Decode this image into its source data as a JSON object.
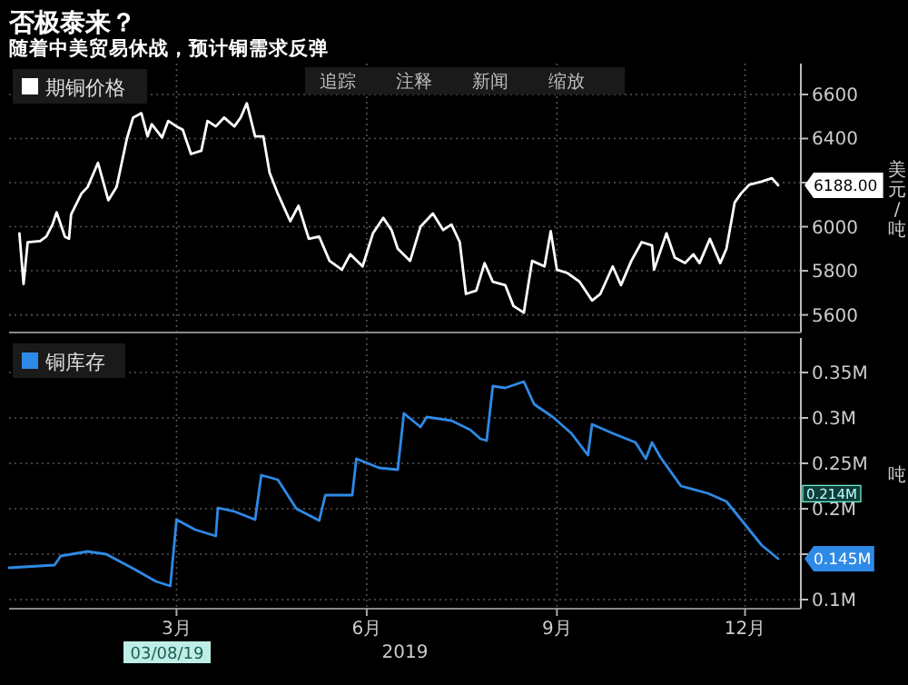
{
  "chart_data": [
    {
      "type": "line",
      "title": "否极泰来？",
      "subtitle": "随着中美贸易休战，预计铜需求反弹",
      "ylabel": "美元/吨",
      "legend": "top left",
      "grid": true,
      "tick_labels": "y",
      "annotations": [
        "追踪",
        "注释",
        "新闻",
        "缩放",
        {
          "text": "6188.00",
          "x": "2019-12-17",
          "y": 6188
        }
      ],
      "xlim": [
        "2018-12-10",
        "2019-12-28"
      ],
      "ylim": [
        5520,
        6740
      ],
      "yticks": [
        5600,
        5800,
        6000,
        {
          "value": 6200,
          "label": null
        },
        6400,
        6600
      ],
      "x": [
        "2018-12-15",
        "2018-12-17",
        "2018-12-19",
        "2018-12-25",
        "2018-12-28",
        "2018-12-31",
        "2019-01-02",
        "2019-01-06",
        "2019-01-08",
        "2019-01-09",
        "2019-01-14",
        "2019-01-17",
        "2019-01-22",
        "2019-01-27",
        "2019-01-31",
        "2019-02-05",
        "2019-02-08",
        "2019-02-12",
        "2019-02-15",
        "2019-02-17",
        "2019-02-22",
        "2019-02-25",
        "2019-03-01",
        "2019-03-04",
        "2019-03-08",
        "2019-03-13",
        "2019-03-16",
        "2019-03-20",
        "2019-03-24",
        "2019-03-29",
        "2019-04-01",
        "2019-04-04",
        "2019-04-08",
        "2019-04-12",
        "2019-04-15",
        "2019-04-19",
        "2019-04-25",
        "2019-04-29",
        "2019-05-04",
        "2019-05-09",
        "2019-05-14",
        "2019-05-20",
        "2019-05-24",
        "2019-05-30",
        "2019-06-04",
        "2019-06-09",
        "2019-06-13",
        "2019-06-16",
        "2019-06-22",
        "2019-06-27",
        "2019-07-03",
        "2019-07-08",
        "2019-07-12",
        "2019-07-16",
        "2019-07-19",
        "2019-07-24",
        "2019-07-28",
        "2019-08-01",
        "2019-08-07",
        "2019-08-11",
        "2019-08-16",
        "2019-08-20",
        "2019-08-26",
        "2019-08-29",
        "2019-09-01",
        "2019-09-06",
        "2019-09-12",
        "2019-09-18",
        "2019-09-22",
        "2019-09-28",
        "2019-10-02",
        "2019-10-07",
        "2019-10-12",
        "2019-10-17",
        "2019-10-18",
        "2019-10-24",
        "2019-10-28",
        "2019-11-02",
        "2019-11-06",
        "2019-11-09",
        "2019-11-14",
        "2019-11-19",
        "2019-11-22",
        "2019-11-26",
        "2019-11-29",
        "2019-12-03",
        "2019-12-09",
        "2019-12-14",
        "2019-12-17"
      ],
      "series": [
        {
          "name": "期铜价格",
          "color": "#ffffff",
          "values": [
            5970,
            5740,
            5930,
            5935,
            5955,
            6010,
            6065,
            5955,
            5945,
            6055,
            6150,
            6180,
            6290,
            6120,
            6180,
            6400,
            6495,
            6515,
            6410,
            6465,
            6405,
            6480,
            6455,
            6440,
            6330,
            6345,
            6480,
            6455,
            6495,
            6455,
            6495,
            6560,
            6410,
            6410,
            6245,
            6150,
            6025,
            6095,
            5945,
            5955,
            5845,
            5805,
            5875,
            5820,
            5970,
            6040,
            5985,
            5900,
            5845,
            6000,
            6060,
            5985,
            6010,
            5930,
            5695,
            5710,
            5835,
            5750,
            5735,
            5640,
            5610,
            5845,
            5820,
            5980,
            5805,
            5790,
            5750,
            5665,
            5695,
            5820,
            5735,
            5845,
            5930,
            5915,
            5805,
            5970,
            5860,
            5835,
            5875,
            5835,
            5945,
            5835,
            5900,
            6110,
            6150,
            6190,
            6205,
            6220,
            6188
          ]
        }
      ]
    },
    {
      "type": "line",
      "ylabel": "吨",
      "xlabel": "2019",
      "legend": "top left",
      "grid": true,
      "annotations": [
        "03/08/19",
        "0.214M",
        {
          "text": "0.145M",
          "x": "2019-12-17",
          "y": 0.145
        }
      ],
      "xlim": [
        "2018-12-10",
        "2019-12-28"
      ],
      "xticks": [
        {
          "value": "2019-03-01",
          "label": "3月"
        },
        {
          "value": "2019-06-01",
          "label": "6月"
        },
        {
          "value": "2019-09-01",
          "label": "9月"
        },
        {
          "value": "2019-12-01",
          "label": "12月"
        }
      ],
      "ylim": [
        0.09,
        0.388
      ],
      "yticks": [
        {
          "value": 0.1,
          "label": "0.1M"
        },
        {
          "value": 0.15,
          "label": null
        },
        {
          "value": 0.2,
          "label": "0.2M"
        },
        {
          "value": 0.25,
          "label": "0.25M"
        },
        {
          "value": 0.3,
          "label": "0.3M"
        },
        {
          "value": 0.35,
          "label": "0.35M"
        }
      ],
      "x": [
        "2018-12-10",
        "2019-01-01",
        "2019-01-04",
        "2019-01-17",
        "2019-01-26",
        "2019-02-09",
        "2019-02-19",
        "2019-02-26",
        "2019-03-01",
        "2019-03-10",
        "2019-03-20",
        "2019-03-21",
        "2019-03-29",
        "2019-04-08",
        "2019-04-11",
        "2019-04-19",
        "2019-04-28",
        "2019-05-09",
        "2019-05-12",
        "2019-05-25",
        "2019-05-27",
        "2019-06-07",
        "2019-06-16",
        "2019-06-19",
        "2019-06-27",
        "2019-06-30",
        "2019-07-12",
        "2019-07-21",
        "2019-07-26",
        "2019-07-29",
        "2019-08-01",
        "2019-08-07",
        "2019-08-16",
        "2019-08-21",
        "2019-08-30",
        "2019-09-08",
        "2019-09-16",
        "2019-09-18",
        "2019-09-28",
        "2019-10-09",
        "2019-10-14",
        "2019-10-17",
        "2019-10-21",
        "2019-10-31",
        "2019-11-13",
        "2019-11-22",
        "2019-12-03",
        "2019-12-09",
        "2019-12-17"
      ],
      "series": [
        {
          "name": "铜库存",
          "color": "#2e8ae6",
          "values": [
            0.135,
            0.138,
            0.148,
            0.153,
            0.15,
            0.133,
            0.12,
            0.115,
            0.188,
            0.177,
            0.17,
            0.201,
            0.197,
            0.188,
            0.237,
            0.232,
            0.2,
            0.187,
            0.215,
            0.215,
            0.255,
            0.245,
            0.243,
            0.305,
            0.29,
            0.301,
            0.297,
            0.287,
            0.277,
            0.275,
            0.335,
            0.333,
            0.34,
            0.315,
            0.301,
            0.283,
            0.259,
            0.293,
            0.283,
            0.273,
            0.255,
            0.273,
            0.257,
            0.225,
            0.217,
            0.208,
            0.177,
            0.16,
            0.145
          ]
        }
      ]
    }
  ]
}
